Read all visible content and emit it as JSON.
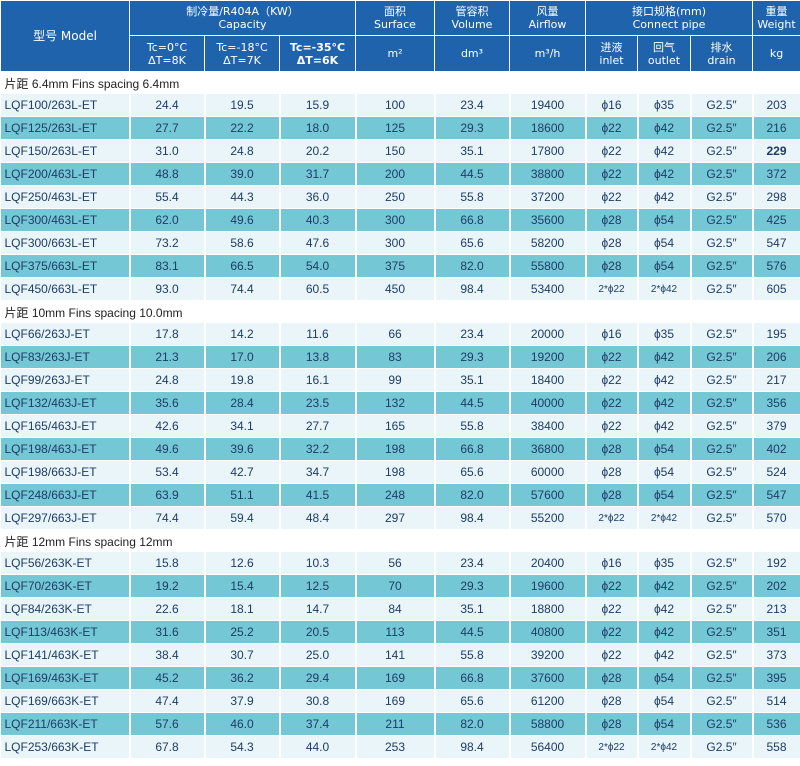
{
  "header": {
    "model": "型号 Model",
    "capacity_cn": "制冷量/R404A（KW）",
    "capacity_en": "Capacity",
    "tc0": "Tc=0°C",
    "dt8": "ΔT=8K",
    "tc18": "Tc=-18°C",
    "dt7": "ΔT=7K",
    "tc35": "Tc=-35°C",
    "dt6": "ΔT=6K",
    "surface_cn": "面积",
    "surface_en": "Surface",
    "surface_unit": "m²",
    "volume_cn": "管容积",
    "volume_en": "Volume",
    "volume_unit": "dm³",
    "airflow_cn": "风量",
    "airflow_en": "Airflow",
    "airflow_unit": "m³/h",
    "connect_cn": "接口规格(mm)",
    "connect_en": "Connect pipe",
    "inlet_cn": "进液",
    "inlet_en": "inlet",
    "outlet_cn": "回气",
    "outlet_en": "outlet",
    "drain_cn": "排水",
    "drain_en": "drain",
    "weight_cn": "重量",
    "weight_en": "Weight",
    "weight_unit": "kg"
  },
  "sections": [
    {
      "title": "片距 6.4mm    Fins spacing 6.4mm",
      "rows": [
        [
          "LQF100/263L-ET",
          "24.4",
          "19.5",
          "15.9",
          "100",
          "23.4",
          "19400",
          "ϕ16",
          "ϕ35",
          "G2.5″",
          "203"
        ],
        [
          "LQF125/263L-ET",
          "27.7",
          "22.2",
          "18.0",
          "125",
          "29.3",
          "18600",
          "ϕ22",
          "ϕ42",
          "G2.5″",
          "216"
        ],
        [
          "LQF150/263L-ET",
          "31.0",
          "24.8",
          "20.2",
          "150",
          "35.1",
          "17800",
          "ϕ22",
          "ϕ42",
          "G2.5″",
          "229"
        ],
        [
          "LQF200/463L-ET",
          "48.8",
          "39.0",
          "31.7",
          "200",
          "44.5",
          "38800",
          "ϕ22",
          "ϕ42",
          "G2.5″",
          "372"
        ],
        [
          "LQF250/463L-ET",
          "55.4",
          "44.3",
          "36.0",
          "250",
          "55.8",
          "37200",
          "ϕ22",
          "ϕ42",
          "G2.5″",
          "298"
        ],
        [
          "LQF300/463L-ET",
          "62.0",
          "49.6",
          "40.3",
          "300",
          "66.8",
          "35600",
          "ϕ28",
          "ϕ54",
          "G2.5″",
          "425"
        ],
        [
          "LQF300/663L-ET",
          "73.2",
          "58.6",
          "47.6",
          "300",
          "65.6",
          "58200",
          "ϕ28",
          "ϕ54",
          "G2.5″",
          "547"
        ],
        [
          "LQF375/663L-ET",
          "83.1",
          "66.5",
          "54.0",
          "375",
          "82.0",
          "55800",
          "ϕ28",
          "ϕ54",
          "G2.5″",
          "576"
        ],
        [
          "LQF450/663L-ET",
          "93.0",
          "74.4",
          "60.5",
          "450",
          "98.4",
          "53400",
          "2*ϕ22",
          "2*ϕ42",
          "G2.5″",
          "605"
        ]
      ]
    },
    {
      "title": "片距 10mm Fins spacing 10.0mm",
      "rows": [
        [
          "LQF66/263J-ET",
          "17.8",
          "14.2",
          "11.6",
          "66",
          "23.4",
          "20000",
          "ϕ16",
          "ϕ35",
          "G2.5″",
          "195"
        ],
        [
          "LQF83/263J-ET",
          "21.3",
          "17.0",
          "13.8",
          "83",
          "29.3",
          "19200",
          "ϕ22",
          "ϕ42",
          "G2.5″",
          "206"
        ],
        [
          "LQF99/263J-ET",
          "24.8",
          "19.8",
          "16.1",
          "99",
          "35.1",
          "18400",
          "ϕ22",
          "ϕ42",
          "G2.5″",
          "217"
        ],
        [
          "LQF132/463J-ET",
          "35.6",
          "28.4",
          "23.5",
          "132",
          "44.5",
          "40000",
          "ϕ22",
          "ϕ42",
          "G2.5″",
          "356"
        ],
        [
          "LQF165/463J-ET",
          "42.6",
          "34.1",
          "27.7",
          "165",
          "55.8",
          "38400",
          "ϕ22",
          "ϕ42",
          "G2.5″",
          "379"
        ],
        [
          "LQF198/463J-ET",
          "49.6",
          "39.6",
          "32.2",
          "198",
          "66.8",
          "36800",
          "ϕ28",
          "ϕ54",
          "G2.5″",
          "402"
        ],
        [
          "LQF198/663J-ET",
          "53.4",
          "42.7",
          "34.7",
          "198",
          "65.6",
          "60000",
          "ϕ28",
          "ϕ54",
          "G2.5″",
          "524"
        ],
        [
          "LQF248/663J-ET",
          "63.9",
          "51.1",
          "41.5",
          "248",
          "82.0",
          "57600",
          "ϕ28",
          "ϕ54",
          "G2.5″",
          "547"
        ],
        [
          "LQF297/663J-ET",
          "74.4",
          "59.4",
          "48.4",
          "297",
          "98.4",
          "55200",
          "2*ϕ22",
          "2*ϕ42",
          "G2.5″",
          "570"
        ]
      ]
    },
    {
      "title": "片距 12mm    Fins spacing 12mm",
      "rows": [
        [
          "LQF56/263K-ET",
          "15.8",
          "12.6",
          "10.3",
          "56",
          "23.4",
          "20400",
          "ϕ16",
          "ϕ35",
          "G2.5″",
          "192"
        ],
        [
          "LQF70/263K-ET",
          "19.2",
          "15.4",
          "12.5",
          "70",
          "29.3",
          "19600",
          "ϕ22",
          "ϕ42",
          "G2.5″",
          "202"
        ],
        [
          "LQF84/263K-ET",
          "22.6",
          "18.1",
          "14.7",
          "84",
          "35.1",
          "18800",
          "ϕ22",
          "ϕ42",
          "G2.5″",
          "213"
        ],
        [
          "LQF113/463K-ET",
          "31.6",
          "25.2",
          "20.5",
          "113",
          "44.5",
          "40800",
          "ϕ22",
          "ϕ42",
          "G2.5″",
          "351"
        ],
        [
          "LQF141/463K-ET",
          "38.4",
          "30.7",
          "25.0",
          "141",
          "55.8",
          "39200",
          "ϕ22",
          "ϕ42",
          "G2.5″",
          "373"
        ],
        [
          "LQF169/463K-ET",
          "45.2",
          "36.2",
          "29.4",
          "169",
          "66.8",
          "37600",
          "ϕ28",
          "ϕ54",
          "G2.5″",
          "395"
        ],
        [
          "LQF169/663K-ET",
          "47.4",
          "37.9",
          "30.8",
          "169",
          "65.6",
          "61200",
          "ϕ28",
          "ϕ54",
          "G2.5″",
          "514"
        ],
        [
          "LQF211/663K-ET",
          "57.6",
          "46.0",
          "37.4",
          "211",
          "82.0",
          "58800",
          "ϕ28",
          "ϕ54",
          "G2.5″",
          "536"
        ],
        [
          "LQF253/663K-ET",
          "67.8",
          "54.3",
          "44.0",
          "253",
          "98.4",
          "56400",
          "2*ϕ22",
          "2*ϕ42",
          "G2.5″",
          "558"
        ]
      ]
    }
  ]
}
